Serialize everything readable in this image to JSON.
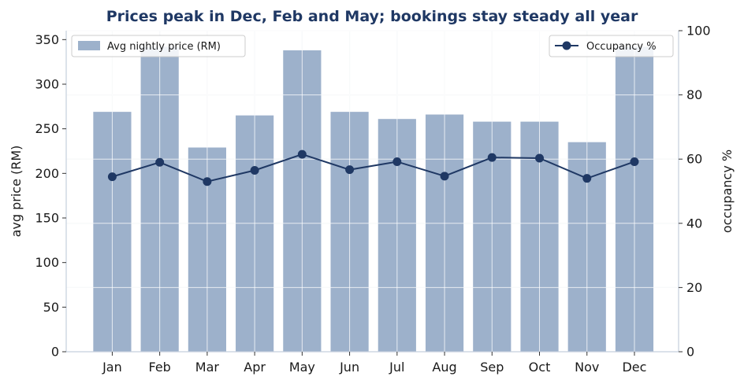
{
  "chart_data": {
    "type": "bar",
    "title": "Prices peak in Dec, Feb and May; bookings stay steady all year",
    "categories": [
      "Jan",
      "Feb",
      "Mar",
      "Apr",
      "May",
      "Jun",
      "Jul",
      "Aug",
      "Sep",
      "Oct",
      "Nov",
      "Dec"
    ],
    "series": [
      {
        "name": "Avg nightly price (RM)",
        "type": "bar",
        "axis": "left",
        "color": "#9db1cb",
        "values": [
          269,
          342,
          229,
          265,
          338,
          269,
          261,
          266,
          258,
          258,
          235,
          342
        ]
      },
      {
        "name": "Occupancy %",
        "type": "line",
        "axis": "right",
        "color": "#1f3864",
        "values": [
          54.5,
          59,
          53,
          56.5,
          61.5,
          56.7,
          59.2,
          54.7,
          60.5,
          60.3,
          54,
          59.2
        ]
      }
    ],
    "ylabel": "avg price (RM)",
    "y2label": "occupancy %",
    "ylim": [
      0,
      360
    ],
    "y2lim": [
      0,
      100
    ],
    "yticks": [
      "0",
      "50",
      "100",
      "150",
      "200",
      "250",
      "300",
      "350"
    ],
    "y2ticks": [
      "0",
      "20",
      "40",
      "60",
      "80",
      "100"
    ],
    "grid": true,
    "legend_bar_position": "top-left",
    "legend_line_position": "top-right"
  }
}
